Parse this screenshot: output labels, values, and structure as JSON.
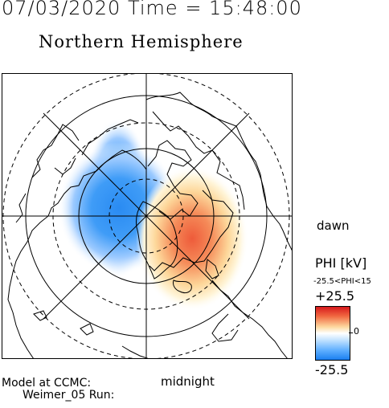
{
  "header": {
    "timestamp": "07/03/2020 Time = 15:48:00",
    "title": "Northern Hemisphere"
  },
  "orientation": {
    "dawn_label": "dawn",
    "midnight_label": "midnight"
  },
  "colorbar": {
    "title": "PHI [kV]",
    "range_text": "-25.5<PHI<15",
    "max_label": "+25.5",
    "zero_label": "0",
    "min_label": "-25.5",
    "colors": {
      "positive": "#d7191c",
      "negative": "#1b7ff0",
      "neutral": "#ffffff"
    }
  },
  "potential_cells": {
    "negative_peak_kv": -25.5,
    "positive_peak_kv": 15
  },
  "footer": {
    "model_line1": "Model at CCMC:",
    "model_line2": "Weimer_05 Run:"
  }
}
